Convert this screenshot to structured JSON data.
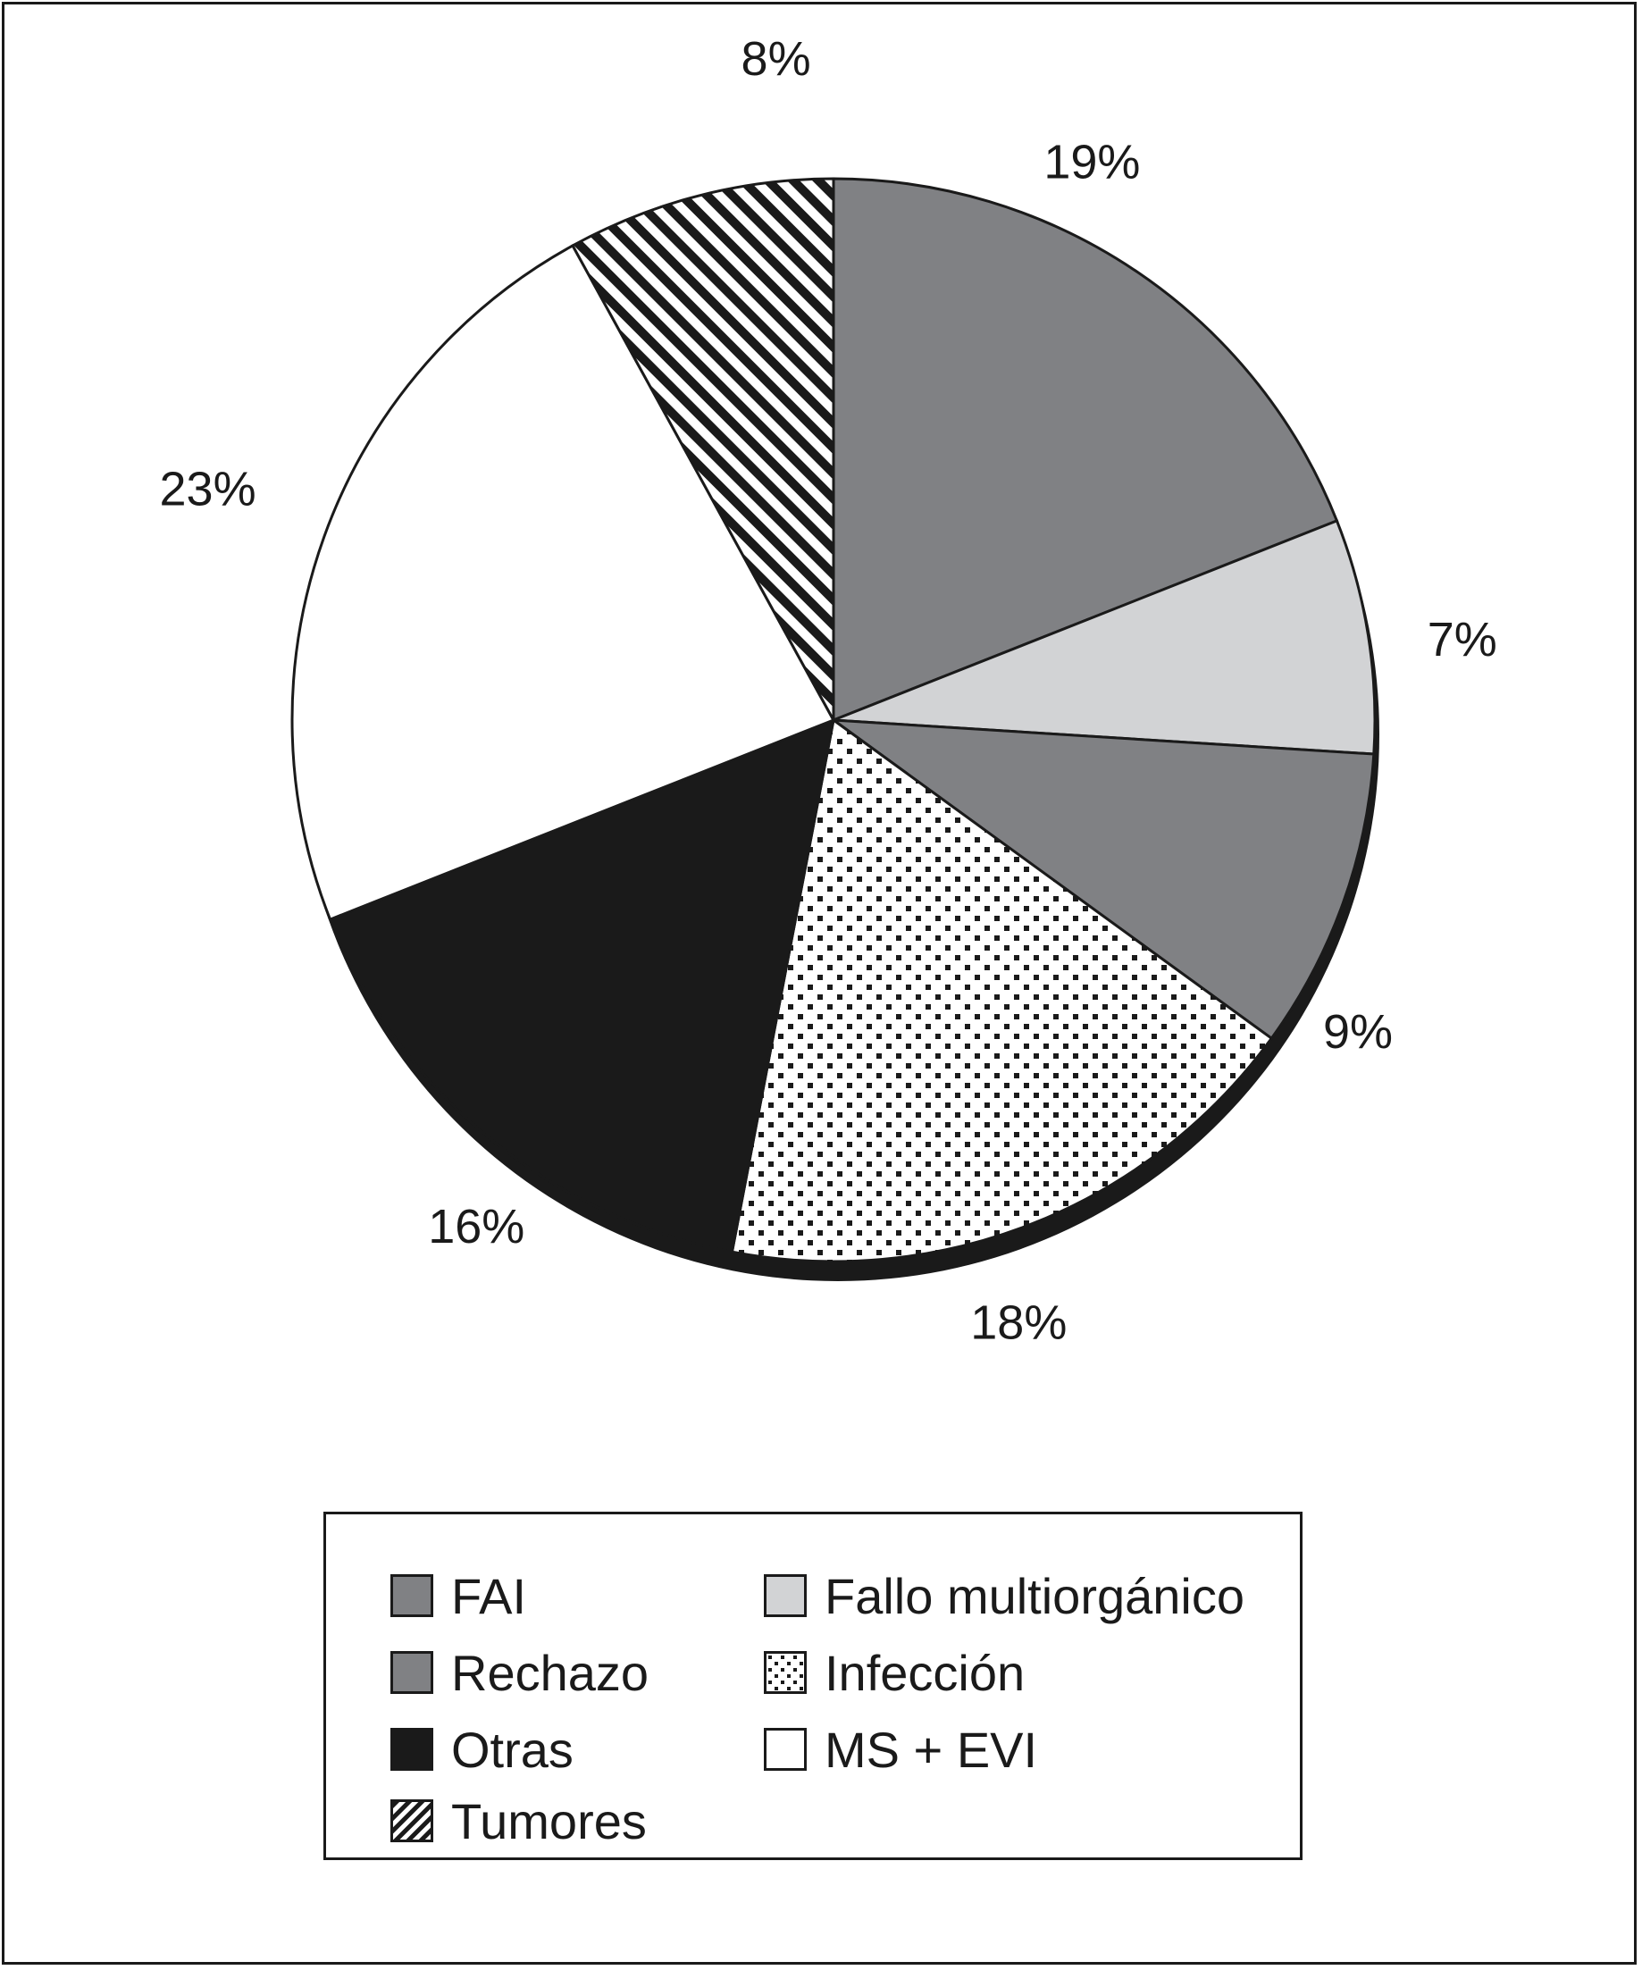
{
  "chart_data": {
    "type": "pie",
    "slices": [
      {
        "label": "FAI",
        "value": 19,
        "value_label": "19%",
        "fill": "gray"
      },
      {
        "label": "Fallo multiorgánico",
        "value": 7,
        "value_label": "7%",
        "fill": "lightgray"
      },
      {
        "label": "Rechazo",
        "value": 9,
        "value_label": "9%",
        "fill": "gray"
      },
      {
        "label": "Infección",
        "value": 18,
        "value_label": "18%",
        "fill": "dots"
      },
      {
        "label": "Otras",
        "value": 16,
        "value_label": "16%",
        "fill": "black"
      },
      {
        "label": "MS + EVI",
        "value": 23,
        "value_label": "23%",
        "fill": "white"
      },
      {
        "label": "Tumores",
        "value": 8,
        "value_label": "8%",
        "fill": "stripes"
      }
    ],
    "legend_position": "bottom",
    "colors": {
      "gray": "#808184",
      "lightgray": "#d2d3d5",
      "black": "#1a1a1a",
      "white": "#ffffff",
      "stroke": "#1a1a1a"
    }
  },
  "legend": {
    "items": [
      {
        "label": "FAI",
        "fill": "gray"
      },
      {
        "label": "Fallo multiorgánico",
        "fill": "lightgray"
      },
      {
        "label": "Rechazo",
        "fill": "gray"
      },
      {
        "label": "Infección",
        "fill": "dots"
      },
      {
        "label": "Otras",
        "fill": "black"
      },
      {
        "label": "MS + EVI",
        "fill": "white"
      },
      {
        "label": "Tumores",
        "fill": "stripes"
      }
    ]
  }
}
